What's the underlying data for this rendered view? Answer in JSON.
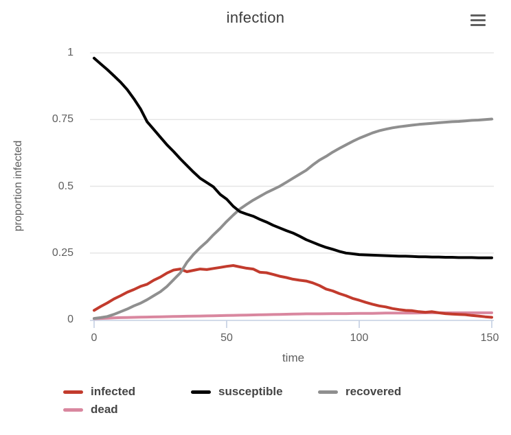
{
  "title": "infection",
  "menu": {
    "icon": "hamburger-menu-icon"
  },
  "colors": {
    "infected": "#c23b2d",
    "susceptible": "#000000",
    "recovered": "#8f8f8f",
    "dead": "#d9879f",
    "gridline": "#e6e6e6",
    "axis": "#c3cfe2",
    "tick_label": "#5e5e5e",
    "title_text": "#3b3b3b",
    "legend_text": "#454545",
    "menu_icon": "#5f5f5f"
  },
  "chart_data": {
    "type": "line",
    "title": "infection",
    "xlabel": "time",
    "ylabel": "proportion infected",
    "xlim": [
      0,
      150
    ],
    "ylim": [
      0,
      1
    ],
    "xticks": [
      0,
      50,
      100,
      150
    ],
    "yticks": [
      0,
      0.25,
      0.5,
      0.75,
      1
    ],
    "xtick_labels": [
      "0",
      "50",
      "100",
      "150"
    ],
    "ytick_labels": [
      "0",
      "0.25",
      "0.5",
      "0.75",
      "1"
    ],
    "grid": true,
    "legend_position": "bottom",
    "x": [
      0,
      2.5,
      5,
      7.5,
      10,
      12.5,
      15,
      17.5,
      20,
      22.5,
      25,
      27.5,
      30,
      32.5,
      35,
      37.5,
      40,
      42.5,
      45,
      47.5,
      50,
      52.5,
      55,
      57.5,
      60,
      62.5,
      65,
      67.5,
      70,
      72.5,
      75,
      77.5,
      80,
      82.5,
      85,
      87.5,
      90,
      92.5,
      95,
      97.5,
      100,
      102.5,
      105,
      107.5,
      110,
      112.5,
      115,
      117.5,
      120,
      122.5,
      125,
      127.5,
      130,
      132.5,
      135,
      137.5,
      140,
      142.5,
      145,
      147.5,
      150
    ],
    "series": [
      {
        "name": "dead",
        "color": "#d9879f",
        "values": [
          0.004,
          0.005,
          0.006,
          0.007,
          0.008,
          0.0085,
          0.009,
          0.0095,
          0.01,
          0.0105,
          0.011,
          0.0115,
          0.012,
          0.0125,
          0.013,
          0.0135,
          0.014,
          0.0145,
          0.015,
          0.0155,
          0.016,
          0.0165,
          0.017,
          0.0175,
          0.018,
          0.0185,
          0.019,
          0.0195,
          0.02,
          0.0205,
          0.021,
          0.0215,
          0.022,
          0.022,
          0.022,
          0.0225,
          0.023,
          0.023,
          0.023,
          0.0235,
          0.024,
          0.024,
          0.024,
          0.0245,
          0.025,
          0.025,
          0.025,
          0.025,
          0.025,
          0.0255,
          0.026,
          0.026,
          0.026,
          0.026,
          0.026,
          0.026,
          0.026,
          0.026,
          0.026,
          0.026,
          0.026
        ]
      },
      {
        "name": "infected",
        "color": "#c23b2d",
        "values": [
          0.035,
          0.05,
          0.063,
          0.078,
          0.09,
          0.103,
          0.113,
          0.125,
          0.133,
          0.148,
          0.16,
          0.175,
          0.186,
          0.19,
          0.18,
          0.185,
          0.19,
          0.188,
          0.192,
          0.196,
          0.2,
          0.203,
          0.198,
          0.193,
          0.19,
          0.178,
          0.176,
          0.17,
          0.163,
          0.158,
          0.152,
          0.148,
          0.145,
          0.138,
          0.128,
          0.115,
          0.108,
          0.098,
          0.09,
          0.08,
          0.073,
          0.065,
          0.058,
          0.052,
          0.048,
          0.042,
          0.038,
          0.035,
          0.034,
          0.03,
          0.028,
          0.03,
          0.026,
          0.023,
          0.021,
          0.02,
          0.019,
          0.016,
          0.014,
          0.011,
          0.009
        ]
      },
      {
        "name": "recovered",
        "color": "#8f8f8f",
        "values": [
          0.005,
          0.008,
          0.012,
          0.02,
          0.03,
          0.04,
          0.052,
          0.062,
          0.075,
          0.09,
          0.105,
          0.125,
          0.15,
          0.175,
          0.215,
          0.245,
          0.27,
          0.292,
          0.318,
          0.342,
          0.368,
          0.392,
          0.415,
          0.432,
          0.448,
          0.462,
          0.476,
          0.488,
          0.5,
          0.515,
          0.53,
          0.545,
          0.56,
          0.58,
          0.598,
          0.612,
          0.628,
          0.642,
          0.655,
          0.668,
          0.68,
          0.69,
          0.7,
          0.708,
          0.714,
          0.719,
          0.723,
          0.726,
          0.729,
          0.732,
          0.734,
          0.736,
          0.738,
          0.74,
          0.742,
          0.743,
          0.745,
          0.747,
          0.748,
          0.75,
          0.752
        ]
      },
      {
        "name": "susceptible",
        "color": "#000000",
        "values": [
          0.98,
          0.958,
          0.937,
          0.914,
          0.89,
          0.862,
          0.828,
          0.79,
          0.742,
          0.713,
          0.684,
          0.655,
          0.63,
          0.603,
          0.578,
          0.553,
          0.53,
          0.514,
          0.498,
          0.47,
          0.452,
          0.425,
          0.405,
          0.396,
          0.388,
          0.376,
          0.366,
          0.354,
          0.344,
          0.334,
          0.325,
          0.313,
          0.3,
          0.29,
          0.28,
          0.271,
          0.264,
          0.256,
          0.25,
          0.247,
          0.244,
          0.243,
          0.242,
          0.241,
          0.24,
          0.239,
          0.238,
          0.238,
          0.237,
          0.236,
          0.236,
          0.235,
          0.235,
          0.234,
          0.234,
          0.233,
          0.233,
          0.233,
          0.232,
          0.232,
          0.232
        ]
      }
    ]
  },
  "legend": {
    "items": [
      {
        "label": "infected",
        "color": "#c23b2d"
      },
      {
        "label": "susceptible",
        "color": "#000000"
      },
      {
        "label": "recovered",
        "color": "#8f8f8f"
      },
      {
        "label": "dead",
        "color": "#d9879f"
      }
    ]
  }
}
